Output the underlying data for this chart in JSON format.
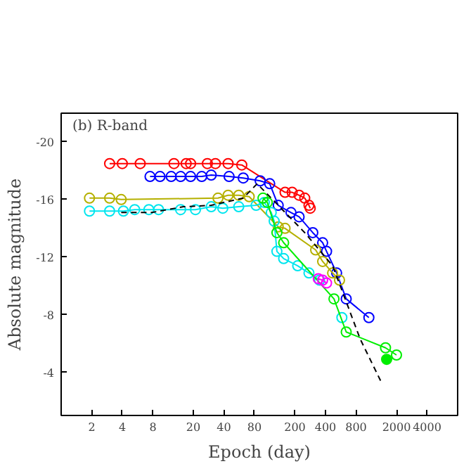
{
  "chart_data": {
    "type": "line",
    "xlabel": "Epoch (day)",
    "ylabel": "Absolute magnitude",
    "annotations": [
      "(b) R-band"
    ],
    "log": "x",
    "xlim": [
      1,
      8000
    ],
    "ylim": [
      -1,
      -22
    ],
    "xticks": [
      2,
      4,
      8,
      20,
      40,
      80,
      200,
      400,
      800,
      2000,
      4000
    ],
    "yticks": [
      -20,
      -16,
      -12,
      -8,
      -4
    ],
    "grid": false,
    "marker": "circle",
    "series": [
      {
        "color": "#ff0000",
        "x": [
          3.0,
          4.0,
          6.0,
          12.9,
          17,
          18.8,
          27.5,
          33,
          44,
          60,
          160,
          188,
          220,
          250,
          275,
          283
        ],
        "values": [
          -18.5,
          -18.5,
          -18.5,
          -18.5,
          -18.5,
          -18.5,
          -18.5,
          -18.5,
          -18.5,
          -18.4,
          -16.5,
          -16.5,
          -16.3,
          -16.1,
          -15.6,
          -15.4
        ]
      },
      {
        "color": "#0000ff",
        "x": [
          7.5,
          9.4,
          12.1,
          15,
          18.8,
          24.2,
          30,
          45,
          62,
          91,
          113,
          137,
          183,
          220,
          300,
          375,
          410,
          515,
          640,
          1070
        ],
        "values": [
          -17.6,
          -17.6,
          -17.6,
          -17.6,
          -17.6,
          -17.6,
          -17.7,
          -17.6,
          -17.5,
          -17.3,
          -17.1,
          -15.6,
          -15.1,
          -14.8,
          -13.7,
          -13.0,
          -12.4,
          -10.9,
          -9.1,
          -7.8
        ]
      },
      {
        "color": "#b5b000",
        "x": [
          1.9,
          3.0,
          3.9,
          35,
          44,
          56,
          71,
          137,
          160,
          320,
          375,
          470,
          550
        ],
        "values": [
          -16.1,
          -16.1,
          -16.0,
          -16.1,
          -16.3,
          -16.3,
          -16.2,
          -14.1,
          -14.0,
          -12.5,
          -11.7,
          -10.9,
          -10.4
        ]
      },
      {
        "color": "#00e5ee",
        "x": [
          1.9,
          3.0,
          4.1,
          5.3,
          7.3,
          9.1,
          15,
          21,
          30,
          39,
          56,
          83,
          100,
          117,
          125,
          133,
          155,
          213,
          275,
          350,
          485,
          580
        ],
        "values": [
          -15.2,
          -15.2,
          -15.2,
          -15.3,
          -15.3,
          -15.3,
          -15.3,
          -15.3,
          -15.5,
          -15.4,
          -15.5,
          -15.6,
          -15.8,
          -15.1,
          -14.5,
          -12.4,
          -11.9,
          -11.4,
          -10.9,
          -10.4,
          null,
          -7.8
        ]
      },
      {
        "color": "#00ee00",
        "x": [
          97,
          107,
          133,
          155,
          485,
          640,
          1560,
          2000
        ],
        "values": [
          -16.1,
          -15.8,
          -13.7,
          -13.0,
          -9.1,
          -6.8,
          -5.7,
          -5.2
        ]
      },
      {
        "color": "#00ee00",
        "type": "scatter",
        "x": [
          1600
        ],
        "values": [
          -4.9
        ]
      },
      {
        "color": "#ff00ff",
        "x": [
          340,
          375,
          410
        ],
        "values": [
          -10.5,
          -10.4,
          -10.2
        ]
      },
      {
        "color": "#000000",
        "marker": "none",
        "line_style": "dashed",
        "x": [
          3.9,
          7.8,
          16,
          30,
          62,
          85,
          117,
          250,
          470,
          640,
          880,
          1420
        ],
        "values": [
          -15.1,
          -15.1,
          -15.5,
          -15.6,
          -16.1,
          -17.1,
          -16.1,
          -13.7,
          -11.4,
          -8.9,
          -6.3,
          -3.3
        ]
      }
    ]
  }
}
